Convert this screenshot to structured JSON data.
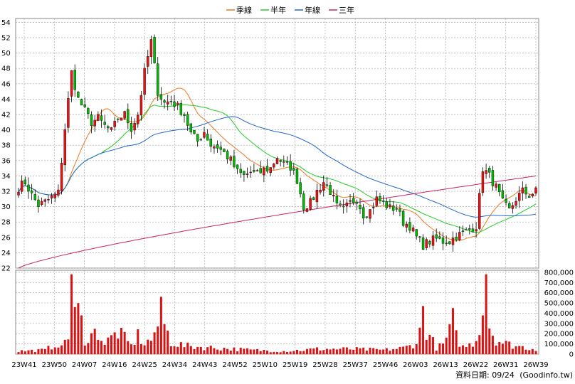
{
  "chart_data": {
    "type": "candlestick",
    "legend": {
      "placement": "top-center",
      "items": [
        {
          "name": "季線",
          "color": "#ee7722"
        },
        {
          "name": "半年",
          "color": "#22cc22"
        },
        {
          "name": "年線",
          "color": "#2266cc"
        },
        {
          "name": "三年",
          "color": "#cc2266"
        }
      ]
    },
    "x_ticks": [
      "23W41",
      "23W50",
      "24W07",
      "24W16",
      "24W25",
      "24W34",
      "24W43",
      "24W52",
      "25W10",
      "25W19",
      "25W28",
      "25W37",
      "25W46",
      "26W03",
      "26W13",
      "26W22",
      "26W31",
      "26W39"
    ],
    "price_axis": {
      "ylim": [
        22,
        54.5
      ],
      "ticks": [
        22,
        24,
        26,
        28,
        30,
        32,
        34,
        36,
        38,
        40,
        42,
        44,
        46,
        48,
        50,
        52,
        54
      ],
      "grid": true
    },
    "volume_axis": {
      "ylim": [
        0,
        820000
      ],
      "ticks": [
        "0",
        "100,000",
        "200,000",
        "300,000",
        "400,000",
        "500,000",
        "600,000",
        "700,000",
        "800,000"
      ],
      "tick_values": [
        0,
        100000,
        200000,
        300000,
        400000,
        500000,
        600000,
        700000,
        800000
      ]
    },
    "colors": {
      "up": "#ee1111",
      "down": "#00bb00",
      "volume": "#dd1111",
      "grid": "#aaaaaa"
    },
    "ohlc_anchors": [
      [
        0,
        32.5
      ],
      [
        2,
        33.2
      ],
      [
        4,
        31.5
      ],
      [
        6,
        30.2
      ],
      [
        8,
        30.6
      ],
      [
        10,
        31.2
      ],
      [
        12,
        31.8
      ],
      [
        14,
        40.2
      ],
      [
        16,
        47.5
      ],
      [
        18,
        44.0
      ],
      [
        20,
        42.5
      ],
      [
        22,
        41.0
      ],
      [
        24,
        41.5
      ],
      [
        26,
        40.5
      ],
      [
        28,
        39.8
      ],
      [
        30,
        41.5
      ],
      [
        32,
        42.0
      ],
      [
        34,
        40.2
      ],
      [
        36,
        42.0
      ],
      [
        38,
        47.5
      ],
      [
        40,
        51.5
      ],
      [
        42,
        45.0
      ],
      [
        44,
        43.5
      ],
      [
        46,
        43.8
      ],
      [
        48,
        43.0
      ],
      [
        50,
        42.0
      ],
      [
        52,
        39.5
      ],
      [
        54,
        38.5
      ],
      [
        56,
        39.8
      ],
      [
        58,
        38.0
      ],
      [
        60,
        37.8
      ],
      [
        62,
        37.0
      ],
      [
        64,
        36.0
      ],
      [
        66,
        34.5
      ],
      [
        68,
        34.0
      ],
      [
        70,
        34.5
      ],
      [
        72,
        34.2
      ],
      [
        74,
        34.8
      ],
      [
        76,
        35.0
      ],
      [
        78,
        36.5
      ],
      [
        80,
        35.5
      ],
      [
        82,
        35.2
      ],
      [
        84,
        33.5
      ],
      [
        86,
        30.0
      ],
      [
        88,
        30.5
      ],
      [
        90,
        32.0
      ],
      [
        92,
        33.2
      ],
      [
        94,
        32.0
      ],
      [
        96,
        30.0
      ],
      [
        98,
        29.5
      ],
      [
        100,
        30.5
      ],
      [
        102,
        31.0
      ],
      [
        104,
        29.0
      ],
      [
        106,
        29.5
      ],
      [
        108,
        31.0
      ],
      [
        110,
        30.5
      ],
      [
        112,
        29.8
      ],
      [
        114,
        29.8
      ],
      [
        116,
        28.0
      ],
      [
        118,
        27.5
      ],
      [
        120,
        26.0
      ],
      [
        122,
        25.0
      ],
      [
        124,
        25.5
      ],
      [
        126,
        25.8
      ],
      [
        128,
        25.5
      ],
      [
        130,
        25.5
      ],
      [
        132,
        26.2
      ],
      [
        134,
        26.5
      ],
      [
        136,
        27.0
      ],
      [
        138,
        27.5
      ],
      [
        140,
        35.0
      ],
      [
        142,
        34.0
      ],
      [
        144,
        32.5
      ],
      [
        146,
        30.5
      ],
      [
        148,
        29.5
      ],
      [
        150,
        31.0
      ],
      [
        152,
        32.0
      ],
      [
        154,
        31.5
      ],
      [
        156,
        32.0
      ]
    ],
    "volume_anchors": [
      [
        0,
        30000
      ],
      [
        8,
        40000
      ],
      [
        12,
        110000
      ],
      [
        13,
        60000
      ],
      [
        14,
        200000
      ],
      [
        15,
        180000
      ],
      [
        16,
        820000
      ],
      [
        17,
        500000
      ],
      [
        18,
        420000
      ],
      [
        19,
        300000
      ],
      [
        20,
        150000
      ],
      [
        24,
        220000
      ],
      [
        26,
        100000
      ],
      [
        30,
        220000
      ],
      [
        34,
        80000
      ],
      [
        36,
        180000
      ],
      [
        38,
        100000
      ],
      [
        40,
        140000
      ],
      [
        42,
        300000
      ],
      [
        43,
        560000
      ],
      [
        44,
        280000
      ],
      [
        46,
        120000
      ],
      [
        50,
        80000
      ],
      [
        60,
        60000
      ],
      [
        70,
        40000
      ],
      [
        80,
        30000
      ],
      [
        86,
        40000
      ],
      [
        90,
        50000
      ],
      [
        100,
        50000
      ],
      [
        110,
        40000
      ],
      [
        116,
        60000
      ],
      [
        118,
        80000
      ],
      [
        120,
        120000
      ],
      [
        122,
        300000
      ],
      [
        124,
        180000
      ],
      [
        126,
        60000
      ],
      [
        128,
        90000
      ],
      [
        130,
        220000
      ],
      [
        131,
        450000
      ],
      [
        132,
        170000
      ],
      [
        134,
        70000
      ],
      [
        136,
        90000
      ],
      [
        138,
        140000
      ],
      [
        140,
        460000
      ],
      [
        141,
        800000
      ],
      [
        142,
        300000
      ],
      [
        143,
        200000
      ],
      [
        144,
        150000
      ],
      [
        146,
        110000
      ],
      [
        150,
        80000
      ],
      [
        156,
        50000
      ]
    ],
    "spike_bars": [
      [
        14,
        140000
      ],
      [
        16,
        780000
      ],
      [
        17,
        460000
      ],
      [
        42,
        270000
      ],
      [
        43,
        560000
      ],
      [
        122,
        470000
      ],
      [
        131,
        450000
      ],
      [
        141,
        780000
      ]
    ]
  },
  "credit": {
    "label": "資料日期: 09/24",
    "site": "(Goodinfo.tw)"
  }
}
